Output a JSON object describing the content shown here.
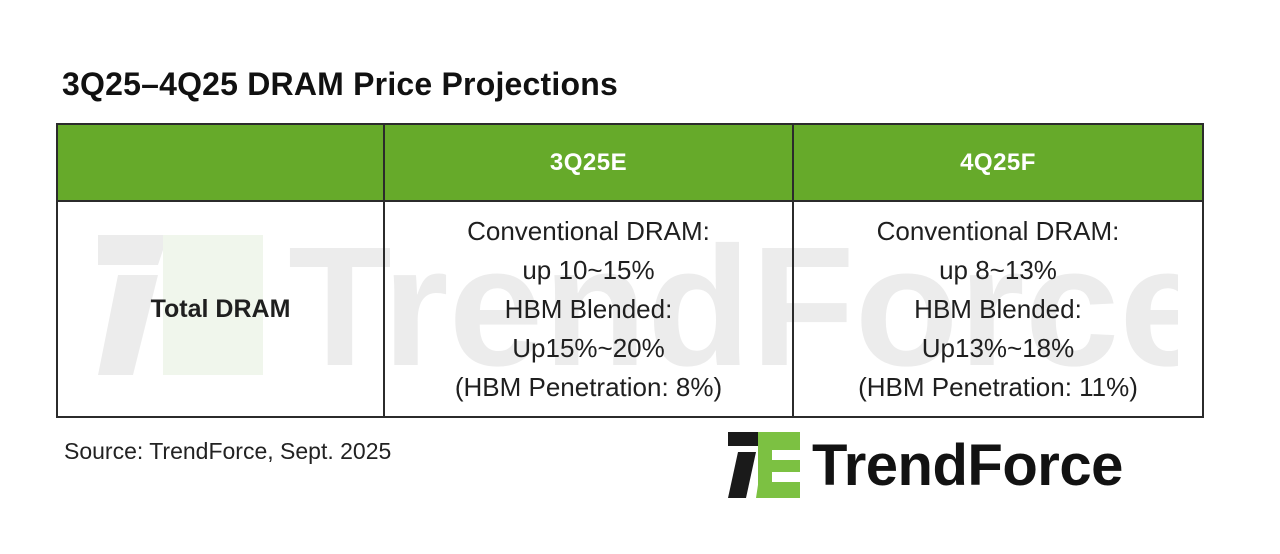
{
  "title": "3Q25–4Q25 DRAM Price Projections",
  "table": {
    "headers": [
      "",
      "3Q25E",
      "4Q25F"
    ],
    "rows": [
      {
        "label": "Total DRAM",
        "cells": [
          {
            "lines": [
              "Conventional DRAM:",
              "up 10~15%",
              "HBM Blended:",
              "Up15%~20%",
              "(HBM Penetration: 8%)"
            ]
          },
          {
            "lines": [
              "Conventional DRAM:",
              "up 8~13%",
              "HBM Blended:",
              "Up13%~18%",
              "(HBM Penetration: 11%)"
            ]
          }
        ]
      }
    ]
  },
  "source": "Source: TrendForce, Sept. 2025",
  "logo": {
    "brand_name": "TrendForce",
    "icon": "trendforce-logo-mark-icon"
  },
  "watermark": {
    "text": "TrendForce",
    "icon": "trendforce-watermark-icon"
  },
  "colors": {
    "header_green": "#66aa2a",
    "logo_green": "#7cc142",
    "logo_dark": "#1a1a1a",
    "border": "#2b2b2b"
  }
}
